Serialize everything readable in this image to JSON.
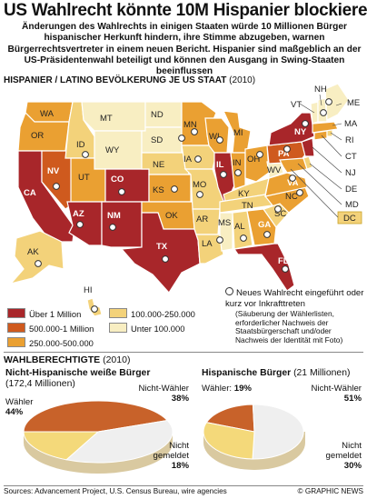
{
  "title": "US Wahlrecht könnte 10M Hispanier blockieren",
  "lead": "Änderungen des Wahlrechts in einigen Staaten würde 10 Millionen Bürger hispanischer Herkunft hindern, ihre Stimme abzugeben, warnen Bürgerrechtsvertreter in einem neuen Bericht. Hispanier sind maßgeblich an der US-Präsidentenwahl beteiligt und können den Ausgang in Swing-Staaten beeinflussen",
  "map": {
    "heading": "HISPANIER / LATINO BEVÖLKERUNG JE US STAAT",
    "year": "(2010)",
    "state_labels": [
      "WA",
      "OR",
      "CA",
      "NV",
      "ID",
      "MT",
      "WY",
      "UT",
      "AZ",
      "CO",
      "NM",
      "ND",
      "SD",
      "NE",
      "KS",
      "OK",
      "TX",
      "MN",
      "IA",
      "MO",
      "AR",
      "LA",
      "WI",
      "IL",
      "MI",
      "IN",
      "OH",
      "KY",
      "TN",
      "MS",
      "AL",
      "GA",
      "FL",
      "SC",
      "NC",
      "VA",
      "WV",
      "PA",
      "NY",
      "ME",
      "VT",
      "NH",
      "MA",
      "RI",
      "CT",
      "NJ",
      "DE",
      "MD",
      "DC",
      "AK",
      "HI"
    ],
    "colors": {
      "over_1m": "#a8262a",
      "500k_1m": "#cf5a1e",
      "250k_500k": "#eaa032",
      "100k_250k": "#f3d27a",
      "under_100k": "#f8eec2"
    }
  },
  "legend": {
    "over_1m": "Über 1 Million",
    "500k_1m": "500.000-1 Million",
    "250k_500k": "250.000-500.000",
    "100k_250k": "100.000-250.000",
    "under_100k": "Unter 100.000"
  },
  "note": {
    "main": "Neues Wahlrecht eingeführt oder kurz vor Inkrafttreten",
    "sub": "(Säuberung der Wählerlisten, erforderlicher Nachweis der Staatsbürgerschaft und/oder Nachweis der Identität mit Foto)"
  },
  "section": {
    "title": "WAHLBERECHTIGTE",
    "year": "(2010)"
  },
  "pies": [
    {
      "title": "Nicht-Hispanische weiße Bürger",
      "total": "(172,4 Millionen)",
      "slices": [
        {
          "label": "Wähler",
          "value": "44%",
          "pct": 44
        },
        {
          "label": "Nicht-Wähler",
          "value": "38%",
          "pct": 38
        },
        {
          "label": "Nicht gemeldet",
          "value": "18%",
          "pct": 18
        }
      ]
    },
    {
      "title": "Hispanische Bürger",
      "total": "(21 Millionen)",
      "slices": [
        {
          "label": "Wähler:",
          "value": "19%",
          "pct": 19
        },
        {
          "label": "Nicht-Wähler",
          "value": "51%",
          "pct": 51
        },
        {
          "label": "Nicht gemeldet",
          "value": "30%",
          "pct": 30
        }
      ]
    }
  ],
  "pie_colors": {
    "voters": "#c8622a",
    "nonvoters": "#efefef",
    "notreg": "#f4d97a"
  },
  "footer": {
    "sources": "Sources: Advancement Project, U.S. Census Bureau, wire agencies",
    "credit": "© GRAPHIC NEWS"
  },
  "watermark": "© GRAPHIC NEWS"
}
